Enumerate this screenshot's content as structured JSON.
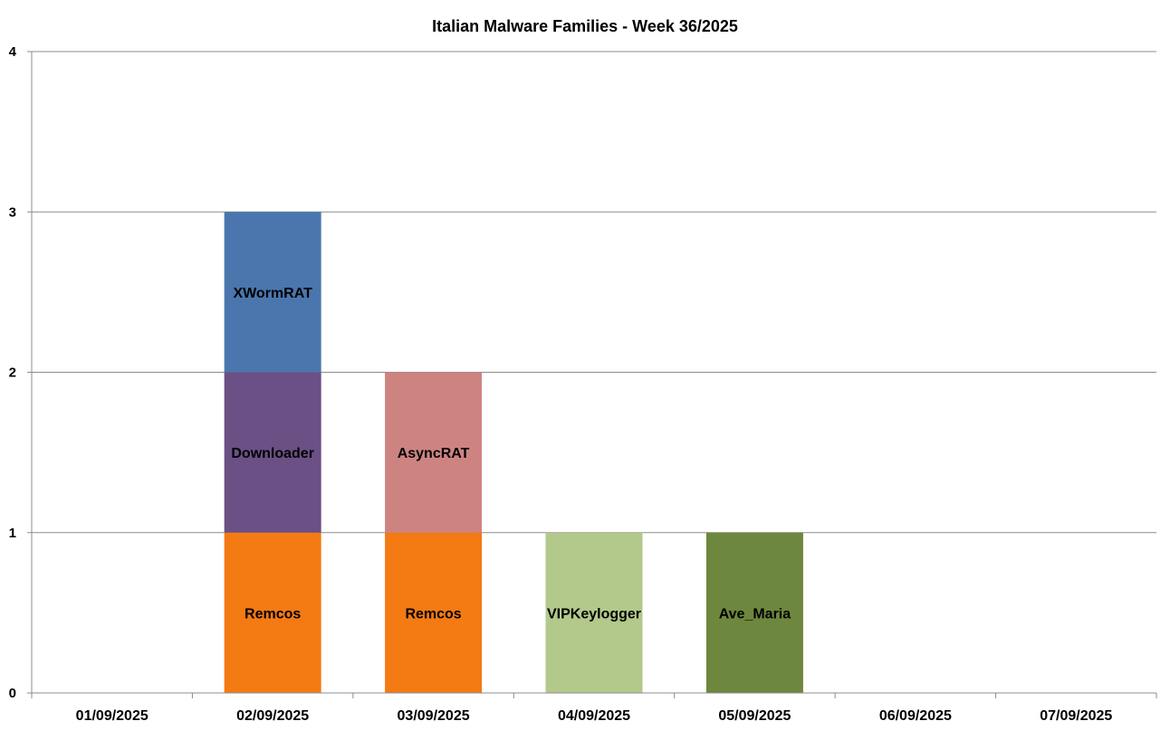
{
  "chart_data": {
    "type": "bar",
    "stacked": true,
    "title": "Italian Malware Families - Week 36/2025",
    "xlabel": "",
    "ylabel": "",
    "ylim": [
      0,
      4
    ],
    "yticks": [
      "0",
      "1",
      "2",
      "3",
      "4"
    ],
    "grid": true,
    "legend": "none",
    "categories": [
      "01/09/2025",
      "02/09/2025",
      "03/09/2025",
      "04/09/2025",
      "05/09/2025",
      "06/09/2025",
      "07/09/2025"
    ],
    "stacks": [
      [],
      [
        {
          "label": "Remcos",
          "value": 1,
          "color": "#F47A14"
        },
        {
          "label": "Downloader",
          "value": 1,
          "color": "#6A5084"
        },
        {
          "label": "XWormRAT",
          "value": 1,
          "color": "#4A76AD"
        }
      ],
      [
        {
          "label": "Remcos",
          "value": 1,
          "color": "#F47A14"
        },
        {
          "label": "AsyncRAT",
          "value": 1,
          "color": "#CD8481"
        }
      ],
      [
        {
          "label": "VIPKeylogger",
          "value": 1,
          "color": "#B3C98B"
        }
      ],
      [
        {
          "label": "Ave_Maria",
          "value": 1,
          "color": "#6E873E"
        }
      ],
      [],
      []
    ]
  }
}
